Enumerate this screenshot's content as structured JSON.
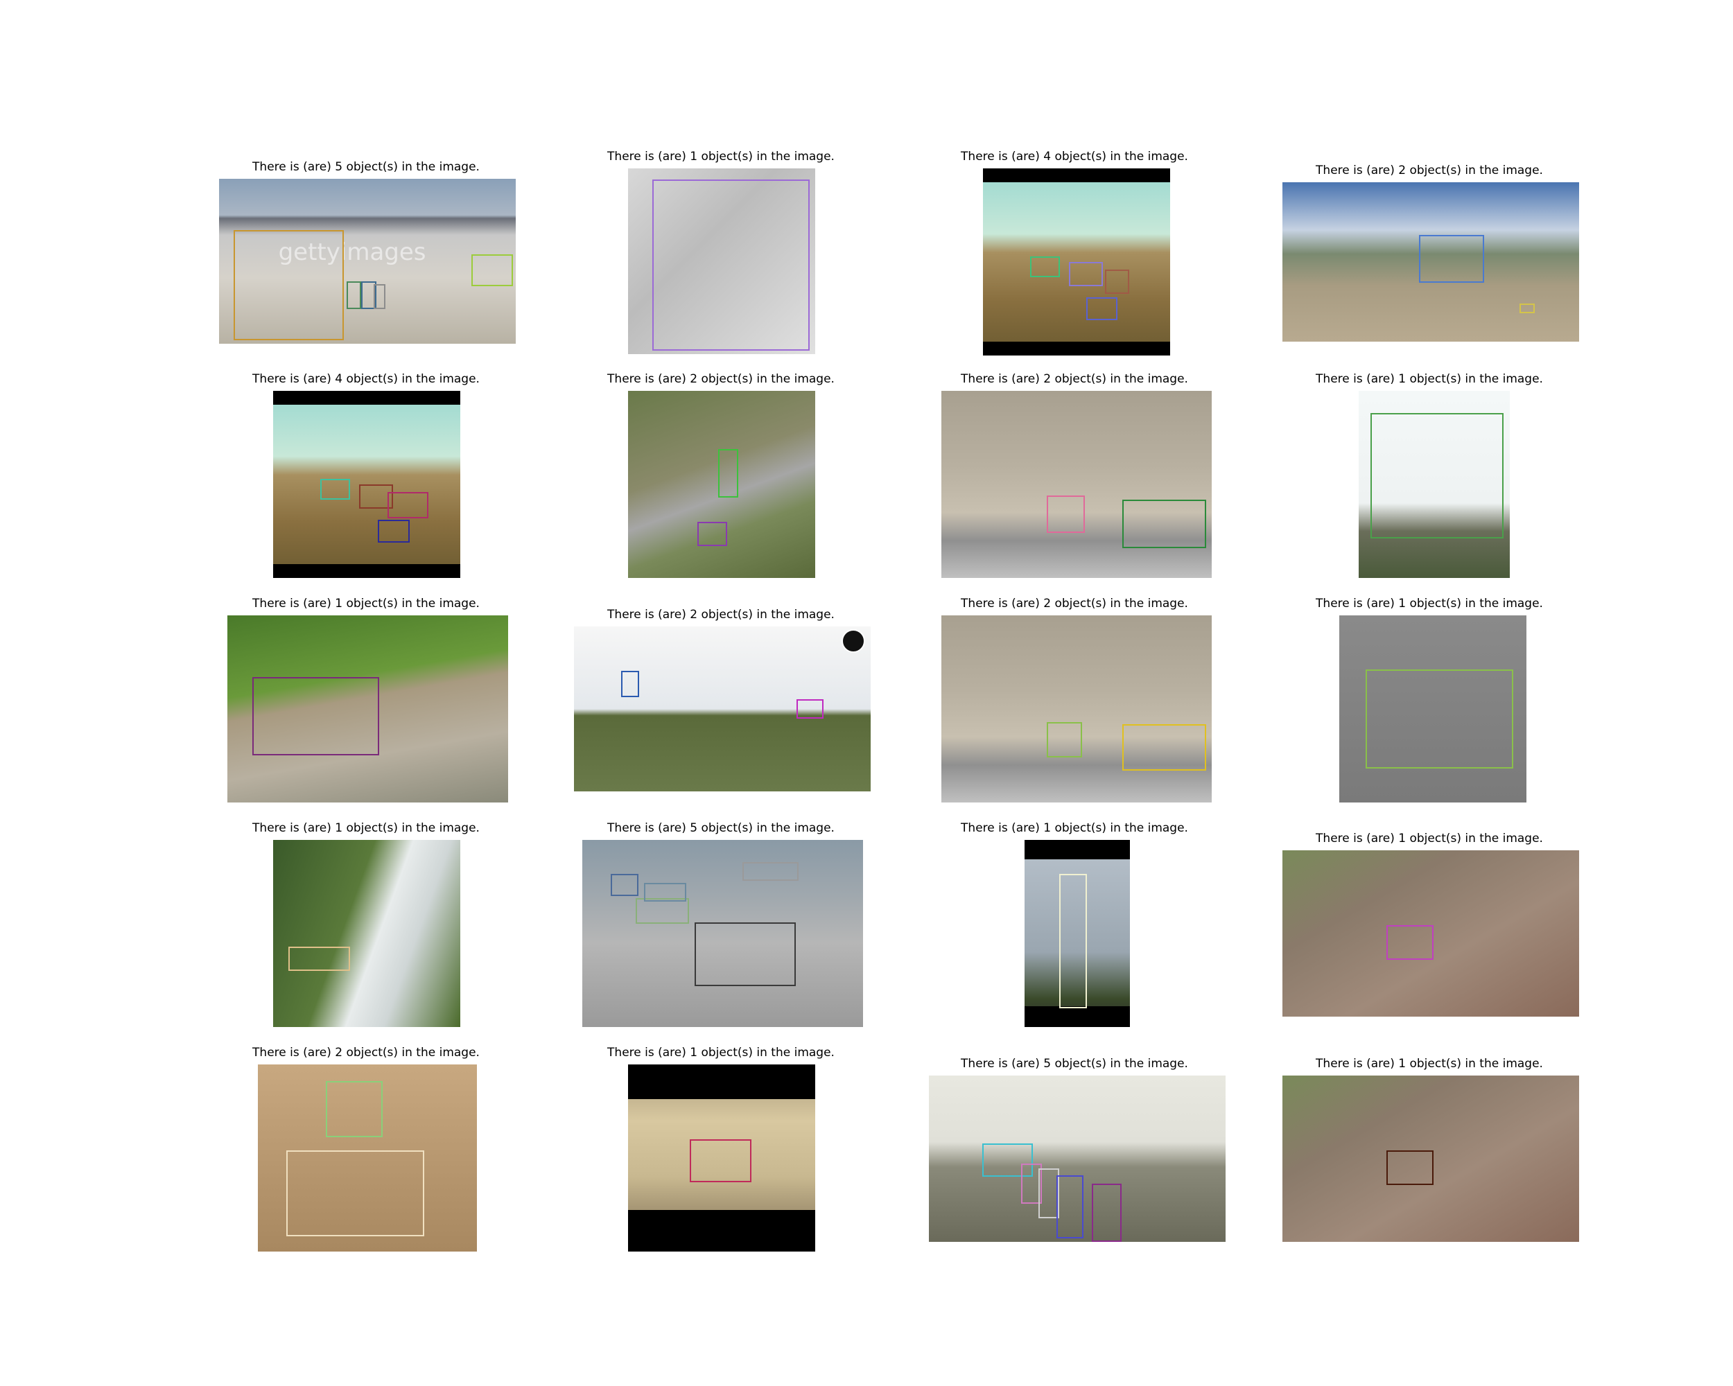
{
  "panels": [
    {
      "caption": "There is (are) 5 object(s) in the image.",
      "scene": "desert-radar-site",
      "box_colors": [
        "#c8962f",
        "#9ccc3c",
        "#4a8a5a",
        "#3c6b8f",
        "#8c8c8c"
      ],
      "watermark": "gettyimages"
    },
    {
      "caption": "There is (are) 1 object(s) in the image.",
      "scene": "tank-top-view",
      "box_colors": [
        "#9b6ad6"
      ]
    },
    {
      "caption": "There is (are) 4 object(s) in the image.",
      "scene": "field-explosion",
      "box_colors": [
        "#3cc27a",
        "#8a7ad6",
        "#a05a46",
        "#5a62d0"
      ]
    },
    {
      "caption": "There is (are) 2 object(s) in the image.",
      "scene": "launcher-field",
      "box_colors": [
        "#4a7ad0",
        "#d4c44a"
      ]
    },
    {
      "caption": "There is (are) 4 object(s) in the image.",
      "scene": "field-explosion",
      "box_colors": [
        "#3cc2a0",
        "#8a3a2a",
        "#b02a6a",
        "#2a2a9a"
      ]
    },
    {
      "caption": "There is (are) 2 object(s) in the image.",
      "scene": "aerial-road",
      "box_colors": [
        "#3cc23c",
        "#8a3ab0"
      ]
    },
    {
      "caption": "There is (are) 2 object(s) in the image.",
      "scene": "artillery-hillside",
      "box_colors": [
        "#e06a9a",
        "#2a8a3a"
      ]
    },
    {
      "caption": "There is (are) 1 object(s) in the image.",
      "scene": "radar-vehicle",
      "box_colors": [
        "#4aa04a"
      ]
    },
    {
      "caption": "There is (are) 1 object(s) in the image.",
      "scene": "humvee-road",
      "box_colors": [
        "#7a2a7a"
      ]
    },
    {
      "caption": "There is (are) 2 object(s) in the image.",
      "scene": "grass-horizon",
      "box_colors": [
        "#2a5ab0",
        "#c02ac0"
      ],
      "logo_icon": "globe-icon"
    },
    {
      "caption": "There is (are) 2 object(s) in the image.",
      "scene": "artillery-hillside",
      "box_colors": [
        "#8ac04a",
        "#e0c020"
      ]
    },
    {
      "caption": "There is (are) 1 object(s) in the image.",
      "scene": "grey-apc",
      "box_colors": [
        "#8ac04a"
      ]
    },
    {
      "caption": "There is (are) 1 object(s) in the image.",
      "scene": "smoke-forest",
      "box_colors": [
        "#e0c08a"
      ]
    },
    {
      "caption": "There is (are) 5 object(s) in the image.",
      "scene": "parade-street",
      "box_colors": [
        "#3a3a3a",
        "#8ab07a",
        "#6a8aa0",
        "#4a6a9a",
        "#9a9a9a"
      ]
    },
    {
      "caption": "There is (are) 1 object(s) in the image.",
      "scene": "missile-vertical",
      "box_colors": [
        "#f0f0d0"
      ]
    },
    {
      "caption": "There is (are) 1 object(s) in the image.",
      "scene": "rocket-launch-aerial",
      "box_colors": [
        "#c040c0"
      ]
    },
    {
      "caption": "There is (are) 2 object(s) in the image.",
      "scene": "desert-truck",
      "box_colors": [
        "#8ad07a",
        "#f0e0c0"
      ]
    },
    {
      "caption": "There is (are) 1 object(s) in the image.",
      "scene": "rocket-fire-ground",
      "box_colors": [
        "#c02a5a"
      ]
    },
    {
      "caption": "There is (are) 5 object(s) in the image.",
      "scene": "soldiers-field",
      "box_colors": [
        "#3ac0d0",
        "#d07ac0",
        "#d0d0d0",
        "#4a4ad0",
        "#8a2a8a"
      ]
    },
    {
      "caption": "There is (are) 1 object(s) in the image.",
      "scene": "rocket-launch-aerial",
      "box_colors": [
        "#4a1a0a"
      ]
    }
  ]
}
